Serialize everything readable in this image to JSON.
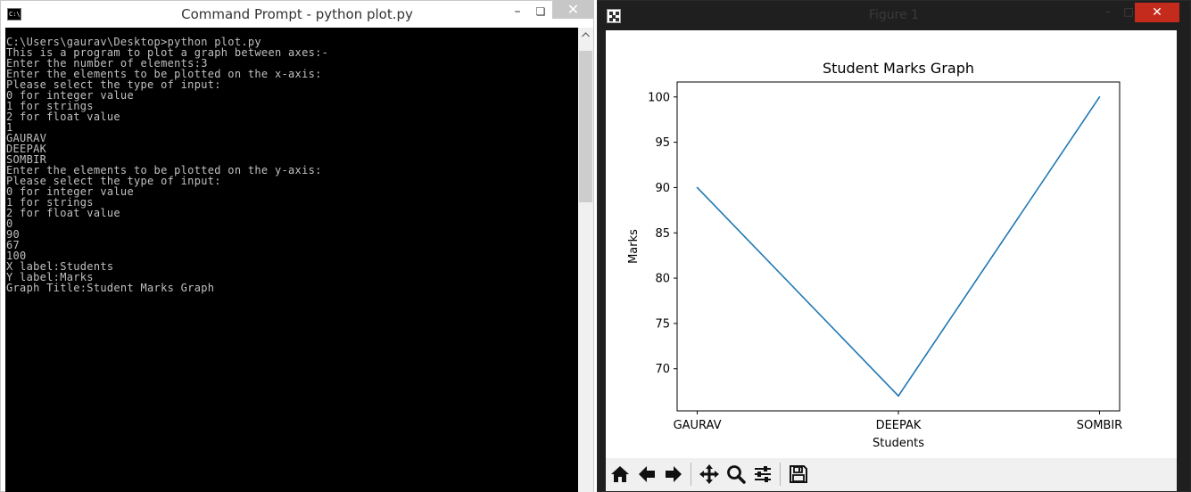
{
  "cmd": {
    "title": "Command Prompt - python  plot.py",
    "icon": "C:\\.",
    "minimize": "–",
    "maximize": "❏",
    "close": "✕",
    "output": "C:\\Users\\gaurav\\Desktop>python plot.py\nThis is a program to plot a graph between axes:-\nEnter the number of elements:3\nEnter the elements to be plotted on the x-axis:\nPlease select the type of input:\n0 for integer value\n1 for strings\n2 for float value\n1\nGAURAV\nDEEPAK\nSOMBIR\nEnter the elements to be plotted on the y-axis:\nPlease select the type of input:\n0 for integer value\n1 for strings\n2 for float value\n0\n90\n67\n100\nX label:Students\nY label:Marks\nGraph Title:Student Marks Graph"
  },
  "figure": {
    "window_title": "Figure 1",
    "minimize": "–",
    "maximize": "□",
    "close": "✕",
    "toolbar": [
      "home-icon",
      "back-arrow-icon",
      "forward-arrow-icon",
      "pan-icon",
      "zoom-icon",
      "configure-subplots-icon",
      "save-icon"
    ]
  },
  "chart_data": {
    "type": "line",
    "title": "Student Marks Graph",
    "xlabel": "Students",
    "ylabel": "Marks",
    "categories": [
      "GAURAV",
      "DEEPAK",
      "SOMBIR"
    ],
    "series": [
      {
        "values": [
          90,
          67,
          100
        ],
        "color": "#1f77b4"
      }
    ],
    "yticks": [
      70,
      75,
      80,
      85,
      90,
      95,
      100
    ],
    "ylim": [
      65.35,
      101.65
    ],
    "grid": false
  }
}
